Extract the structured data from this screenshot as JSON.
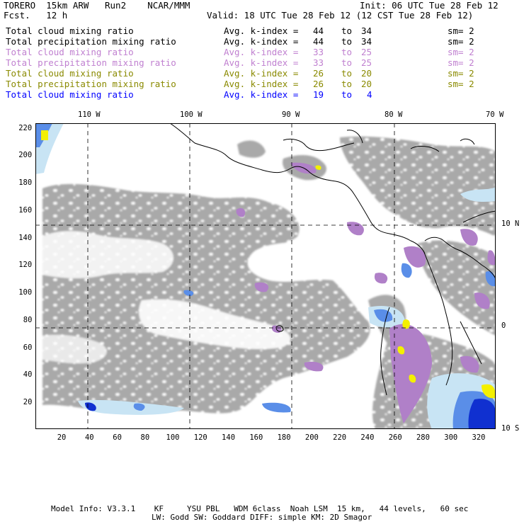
{
  "header": {
    "left1": "TORERO  15km ARW   Run2    NCAR/MMM",
    "left2": "Fcst.   12 h",
    "init": "Init: 06 UTC Tue 28 Feb 12",
    "valid": "Valid: 18 UTC Tue 28 Feb 12 (12 CST Tue 28 Feb 12)"
  },
  "legend": [
    {
      "field": "Total cloud mixing ratio",
      "avg": "Avg. k-index =",
      "hi": "44",
      "to": "to",
      "lo": "34",
      "sm": "sm= 2",
      "color": "#000000"
    },
    {
      "field": "Total precipitation mixing ratio",
      "avg": "Avg. k-index =",
      "hi": "44",
      "to": "to",
      "lo": "34",
      "sm": "sm= 2",
      "color": "#000000"
    },
    {
      "field": "Total cloud mixing ratio",
      "avg": "Avg. k-index =",
      "hi": "33",
      "to": "to",
      "lo": "25",
      "sm": "sm= 2",
      "color": "#c080d0"
    },
    {
      "field": "Total precipitation mixing ratio",
      "avg": "Avg. k-index =",
      "hi": "33",
      "to": "to",
      "lo": "25",
      "sm": "sm= 2",
      "color": "#c080d0"
    },
    {
      "field": "Total cloud mixing ratio",
      "avg": "Avg. k-index =",
      "hi": "26",
      "to": "to",
      "lo": "20",
      "sm": "sm= 2",
      "color": "#8a8a00"
    },
    {
      "field": "Total precipitation mixing ratio",
      "avg": "Avg. k-index =",
      "hi": "26",
      "to": "to",
      "lo": "20",
      "sm": "sm= 2",
      "color": "#8a8a00"
    },
    {
      "field": "Total cloud mixing ratio",
      "avg": "Avg. k-index =",
      "hi": "19",
      "to": "to",
      "lo": "4",
      "sm": "",
      "color": "#0000ff"
    }
  ],
  "axes": {
    "top_lon": [
      {
        "label": "110 W",
        "gridx": 124
      },
      {
        "label": "100 W",
        "gridx": 268
      },
      {
        "label": "90 W",
        "gridx": 412
      },
      {
        "label": "80 W",
        "gridx": 557
      },
      {
        "label": "70 W",
        "gridx": 700
      }
    ],
    "right_lat": [
      {
        "label": "10 N",
        "grid": 150
      },
      {
        "label": "0",
        "grid": 76
      },
      {
        "label": "10 S",
        "grid": 1
      }
    ],
    "x_ticks": [
      "20",
      "40",
      "60",
      "80",
      "100",
      "120",
      "140",
      "160",
      "180",
      "200",
      "220",
      "240",
      "260",
      "280",
      "300",
      "320"
    ],
    "y_ticks": [
      "20",
      "40",
      "60",
      "80",
      "100",
      "120",
      "140",
      "160",
      "180",
      "200",
      "220"
    ],
    "x_range": [
      1,
      332
    ],
    "y_range": [
      1,
      224
    ]
  },
  "footer": {
    "line1": "Model Info: V3.3.1    KF     YSU PBL   WDM 6class  Noah LSM  15 km,   44 levels,   60 sec",
    "line2": "LW: Godd SW: Goddard DIFF: simple KM: 2D Smagor"
  },
  "colors": {
    "cloud_gray": "#a9a9a9",
    "light_blue": "#c8e4f4",
    "mid_blue": "#5a8ee8",
    "dark_blue": "#1030d0",
    "purple": "#b080c8",
    "yellow": "#f4f000"
  }
}
